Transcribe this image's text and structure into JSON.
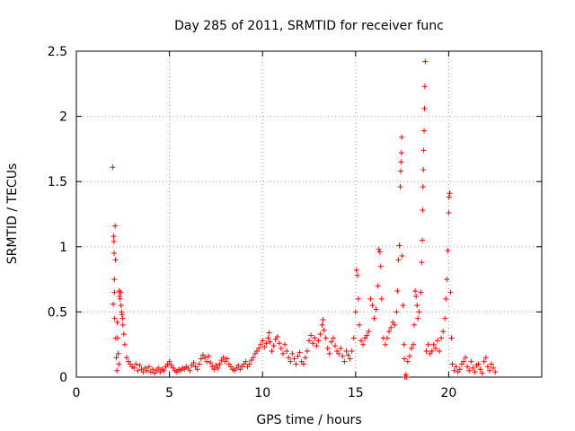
{
  "chart_data": {
    "type": "scatter",
    "title": "Day 285 of 2011, SRMTID for receiver func",
    "xlabel": "GPS time / hours",
    "ylabel": "SRMTID / TECUs",
    "xlim": [
      0,
      25
    ],
    "ylim": [
      0,
      2.5
    ],
    "grid": true,
    "marker": "+",
    "color": "#ff0000",
    "x_ticks": [
      {
        "value": 0,
        "label": "0"
      },
      {
        "value": 5,
        "label": "5"
      },
      {
        "value": 10,
        "label": "10"
      },
      {
        "value": 15,
        "label": "15"
      },
      {
        "value": 20,
        "label": "20"
      }
    ],
    "y_ticks": [
      {
        "value": 0,
        "label": "0"
      },
      {
        "value": 0.5,
        "label": "0.5"
      },
      {
        "value": 1,
        "label": "1"
      },
      {
        "value": 1.5,
        "label": "1.5"
      },
      {
        "value": 2,
        "label": "2"
      },
      {
        "value": 2.5,
        "label": "2.5"
      }
    ],
    "series": [
      {
        "name": "SRMTID",
        "points": [
          [
            1.95,
            1.61
          ],
          [
            1.98,
            0.56
          ],
          [
            2.0,
            1.08
          ],
          [
            2.02,
            1.04
          ],
          [
            2.03,
            0.95
          ],
          [
            2.04,
            0.75
          ],
          [
            2.05,
            0.65
          ],
          [
            2.06,
            0.45
          ],
          [
            2.08,
            1.16
          ],
          [
            2.1,
            0.9
          ],
          [
            2.12,
            0.3
          ],
          [
            2.15,
            0.15
          ],
          [
            2.18,
            0.05
          ],
          [
            2.2,
            0.42
          ],
          [
            2.22,
            0.3
          ],
          [
            2.25,
            0.18
          ],
          [
            2.28,
            0.1
          ],
          [
            2.3,
            0.66
          ],
          [
            2.32,
            0.62
          ],
          [
            2.35,
            0.6
          ],
          [
            2.38,
            0.65
          ],
          [
            2.4,
            0.55
          ],
          [
            2.43,
            0.5
          ],
          [
            2.45,
            0.48
          ],
          [
            2.48,
            0.45
          ],
          [
            2.5,
            0.4
          ],
          [
            2.55,
            0.33
          ],
          [
            2.6,
            0.25
          ],
          [
            2.7,
            0.15
          ],
          [
            2.8,
            0.12
          ],
          [
            2.9,
            0.1
          ],
          [
            3.0,
            0.08
          ],
          [
            3.1,
            0.07
          ],
          [
            3.2,
            0.1
          ],
          [
            3.3,
            0.05
          ],
          [
            3.4,
            0.09
          ],
          [
            3.5,
            0.06
          ],
          [
            3.6,
            0.04
          ],
          [
            3.7,
            0.07
          ],
          [
            3.8,
            0.05
          ],
          [
            3.9,
            0.08
          ],
          [
            4.0,
            0.04
          ],
          [
            4.1,
            0.06
          ],
          [
            4.2,
            0.03
          ],
          [
            4.3,
            0.05
          ],
          [
            4.4,
            0.07
          ],
          [
            4.5,
            0.04
          ],
          [
            4.6,
            0.06
          ],
          [
            4.7,
            0.05
          ],
          [
            4.8,
            0.08
          ],
          [
            4.9,
            0.1
          ],
          [
            5.0,
            0.12
          ],
          [
            5.1,
            0.09
          ],
          [
            5.2,
            0.07
          ],
          [
            5.3,
            0.05
          ],
          [
            5.4,
            0.04
          ],
          [
            5.5,
            0.06
          ],
          [
            5.6,
            0.05
          ],
          [
            5.7,
            0.07
          ],
          [
            5.8,
            0.06
          ],
          [
            5.9,
            0.08
          ],
          [
            6.0,
            0.07
          ],
          [
            6.1,
            0.05
          ],
          [
            6.2,
            0.09
          ],
          [
            6.3,
            0.11
          ],
          [
            6.4,
            0.08
          ],
          [
            6.5,
            0.06
          ],
          [
            6.6,
            0.1
          ],
          [
            6.7,
            0.14
          ],
          [
            6.8,
            0.17
          ],
          [
            6.9,
            0.15
          ],
          [
            7.0,
            0.12
          ],
          [
            7.1,
            0.16
          ],
          [
            7.2,
            0.11
          ],
          [
            7.3,
            0.08
          ],
          [
            7.4,
            0.06
          ],
          [
            7.5,
            0.09
          ],
          [
            7.6,
            0.07
          ],
          [
            7.7,
            0.1
          ],
          [
            7.8,
            0.13
          ],
          [
            7.9,
            0.15
          ],
          [
            8.0,
            0.12
          ],
          [
            8.1,
            0.14
          ],
          [
            8.2,
            0.1
          ],
          [
            8.3,
            0.08
          ],
          [
            8.4,
            0.06
          ],
          [
            8.5,
            0.05
          ],
          [
            8.6,
            0.07
          ],
          [
            8.7,
            0.09
          ],
          [
            8.8,
            0.06
          ],
          [
            8.9,
            0.08
          ],
          [
            9.0,
            0.1
          ],
          [
            9.1,
            0.12
          ],
          [
            9.2,
            0.08
          ],
          [
            9.3,
            0.1
          ],
          [
            9.4,
            0.13
          ],
          [
            9.5,
            0.15
          ],
          [
            9.6,
            0.18
          ],
          [
            9.7,
            0.2
          ],
          [
            9.8,
            0.22
          ],
          [
            9.9,
            0.25
          ],
          [
            10.0,
            0.28
          ],
          [
            10.1,
            0.23
          ],
          [
            10.2,
            0.26
          ],
          [
            10.3,
            0.3
          ],
          [
            10.35,
            0.34
          ],
          [
            10.4,
            0.27
          ],
          [
            10.5,
            0.2
          ],
          [
            10.6,
            0.24
          ],
          [
            10.7,
            0.29
          ],
          [
            10.8,
            0.31
          ],
          [
            10.9,
            0.26
          ],
          [
            11.0,
            0.22
          ],
          [
            11.1,
            0.18
          ],
          [
            11.2,
            0.25
          ],
          [
            11.3,
            0.2
          ],
          [
            11.4,
            0.15
          ],
          [
            11.5,
            0.12
          ],
          [
            11.6,
            0.18
          ],
          [
            11.7,
            0.14
          ],
          [
            11.8,
            0.1
          ],
          [
            11.9,
            0.16
          ],
          [
            12.0,
            0.19
          ],
          [
            12.1,
            0.12
          ],
          [
            12.2,
            0.1
          ],
          [
            12.3,
            0.15
          ],
          [
            12.4,
            0.2
          ],
          [
            12.5,
            0.28
          ],
          [
            12.6,
            0.32
          ],
          [
            12.7,
            0.26
          ],
          [
            12.8,
            0.3
          ],
          [
            12.9,
            0.24
          ],
          [
            13.0,
            0.28
          ],
          [
            13.1,
            0.33
          ],
          [
            13.2,
            0.4
          ],
          [
            13.25,
            0.44
          ],
          [
            13.3,
            0.36
          ],
          [
            13.4,
            0.3
          ],
          [
            13.5,
            0.22
          ],
          [
            13.6,
            0.18
          ],
          [
            13.7,
            0.27
          ],
          [
            13.8,
            0.3
          ],
          [
            13.9,
            0.24
          ],
          [
            14.0,
            0.2
          ],
          [
            14.1,
            0.18
          ],
          [
            14.2,
            0.22
          ],
          [
            14.3,
            0.16
          ],
          [
            14.4,
            0.12
          ],
          [
            14.5,
            0.2
          ],
          [
            14.6,
            0.17
          ],
          [
            14.7,
            0.14
          ],
          [
            14.8,
            0.2
          ],
          [
            14.9,
            0.3
          ],
          [
            15.0,
            0.5
          ],
          [
            15.05,
            0.82
          ],
          [
            15.1,
            0.78
          ],
          [
            15.15,
            0.6
          ],
          [
            15.2,
            0.4
          ],
          [
            15.3,
            0.28
          ],
          [
            15.4,
            0.25
          ],
          [
            15.5,
            0.3
          ],
          [
            15.6,
            0.32
          ],
          [
            15.7,
            0.35
          ],
          [
            15.8,
            0.6
          ],
          [
            15.9,
            0.55
          ],
          [
            16.0,
            0.45
          ],
          [
            16.1,
            0.52
          ],
          [
            16.2,
            0.7
          ],
          [
            16.25,
            0.98
          ],
          [
            16.3,
            0.96
          ],
          [
            16.35,
            0.85
          ],
          [
            16.4,
            0.6
          ],
          [
            16.5,
            0.3
          ],
          [
            16.6,
            0.25
          ],
          [
            16.7,
            0.3
          ],
          [
            16.8,
            0.35
          ],
          [
            16.9,
            0.38
          ],
          [
            17.0,
            0.42
          ],
          [
            17.1,
            0.4
          ],
          [
            17.2,
            0.5
          ],
          [
            17.25,
            0.66
          ],
          [
            17.3,
            0.9
          ],
          [
            17.35,
            1.01
          ],
          [
            17.4,
            1.46
          ],
          [
            17.42,
            1.58
          ],
          [
            17.44,
            1.65
          ],
          [
            17.46,
            1.72
          ],
          [
            17.48,
            1.84
          ],
          [
            17.5,
            0.93
          ],
          [
            17.55,
            0.55
          ],
          [
            17.6,
            0.25
          ],
          [
            17.62,
            0.14
          ],
          [
            17.65,
            0.0
          ],
          [
            17.7,
            0.02
          ],
          [
            17.75,
            0.0
          ],
          [
            17.8,
            0.12
          ],
          [
            17.9,
            0.16
          ],
          [
            18.0,
            0.22
          ],
          [
            18.1,
            0.25
          ],
          [
            18.15,
            0.4
          ],
          [
            18.2,
            0.66
          ],
          [
            18.25,
            0.62
          ],
          [
            18.3,
            0.55
          ],
          [
            18.35,
            0.45
          ],
          [
            18.4,
            0.5
          ],
          [
            18.5,
            0.65
          ],
          [
            18.55,
            0.88
          ],
          [
            18.58,
            1.05
          ],
          [
            18.6,
            1.28
          ],
          [
            18.62,
            1.46
          ],
          [
            18.64,
            1.59
          ],
          [
            18.66,
            1.74
          ],
          [
            18.68,
            1.89
          ],
          [
            18.7,
            2.06
          ],
          [
            18.72,
            2.23
          ],
          [
            18.74,
            2.42
          ],
          [
            18.8,
            0.2
          ],
          [
            18.9,
            0.25
          ],
          [
            19.0,
            0.18
          ],
          [
            19.1,
            0.2
          ],
          [
            19.2,
            0.25
          ],
          [
            19.3,
            0.22
          ],
          [
            19.4,
            0.28
          ],
          [
            19.5,
            0.2
          ],
          [
            19.6,
            0.3
          ],
          [
            19.7,
            0.35
          ],
          [
            19.8,
            0.45
          ],
          [
            19.85,
            0.6
          ],
          [
            19.9,
            0.75
          ],
          [
            19.95,
            0.97
          ],
          [
            20.0,
            1.26
          ],
          [
            20.02,
            1.38
          ],
          [
            20.05,
            1.41
          ],
          [
            20.1,
            0.65
          ],
          [
            20.15,
            0.3
          ],
          [
            20.2,
            0.1
          ],
          [
            20.3,
            0.05
          ],
          [
            20.4,
            0.08
          ],
          [
            20.5,
            0.04
          ],
          [
            20.6,
            0.06
          ],
          [
            20.7,
            0.1
          ],
          [
            20.8,
            0.12
          ],
          [
            20.9,
            0.15
          ],
          [
            21.0,
            0.08
          ],
          [
            21.1,
            0.05
          ],
          [
            21.2,
            0.12
          ],
          [
            21.3,
            0.07
          ],
          [
            21.4,
            0.04
          ],
          [
            21.5,
            0.09
          ],
          [
            21.6,
            0.1
          ],
          [
            21.7,
            0.06
          ],
          [
            21.8,
            0.03
          ],
          [
            21.9,
            0.12
          ],
          [
            22.0,
            0.15
          ],
          [
            22.1,
            0.08
          ],
          [
            22.2,
            0.05
          ],
          [
            22.3,
            0.1
          ],
          [
            22.4,
            0.07
          ],
          [
            22.5,
            0.04
          ]
        ]
      }
    ]
  }
}
